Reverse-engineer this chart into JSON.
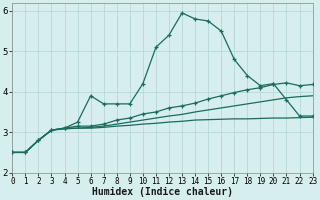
{
  "xlabel": "Humidex (Indice chaleur)",
  "background_color": "#d6eeee",
  "grid_color": "#b8d8d8",
  "line_color": "#1a6b60",
  "xlim": [
    0,
    23
  ],
  "ylim": [
    2.0,
    6.2
  ],
  "yticks": [
    2,
    3,
    4,
    5,
    6
  ],
  "xticks": [
    0,
    1,
    2,
    3,
    4,
    5,
    6,
    7,
    8,
    9,
    10,
    11,
    12,
    13,
    14,
    15,
    16,
    17,
    18,
    19,
    20,
    21,
    22,
    23
  ],
  "series1": [
    2.5,
    2.5,
    2.8,
    3.05,
    3.1,
    3.25,
    3.9,
    3.7,
    3.7,
    3.7,
    4.2,
    5.1,
    5.4,
    5.95,
    5.8,
    5.75,
    5.5,
    4.8,
    4.4,
    4.15,
    4.2,
    3.8,
    3.4,
    3.4
  ],
  "series2": [
    2.5,
    2.5,
    2.8,
    3.05,
    3.1,
    3.15,
    3.15,
    3.2,
    3.3,
    3.35,
    3.45,
    3.5,
    3.6,
    3.65,
    3.72,
    3.82,
    3.9,
    3.98,
    4.05,
    4.1,
    4.18,
    4.22,
    4.15,
    4.18
  ],
  "series3": [
    2.5,
    2.5,
    2.8,
    3.05,
    3.1,
    3.1,
    3.12,
    3.15,
    3.2,
    3.25,
    3.3,
    3.35,
    3.4,
    3.44,
    3.5,
    3.55,
    3.6,
    3.65,
    3.7,
    3.75,
    3.8,
    3.85,
    3.88,
    3.9
  ],
  "series4": [
    2.5,
    2.5,
    2.8,
    3.05,
    3.08,
    3.1,
    3.1,
    3.12,
    3.15,
    3.17,
    3.2,
    3.22,
    3.25,
    3.27,
    3.3,
    3.31,
    3.32,
    3.33,
    3.33,
    3.34,
    3.35,
    3.35,
    3.36,
    3.37
  ]
}
